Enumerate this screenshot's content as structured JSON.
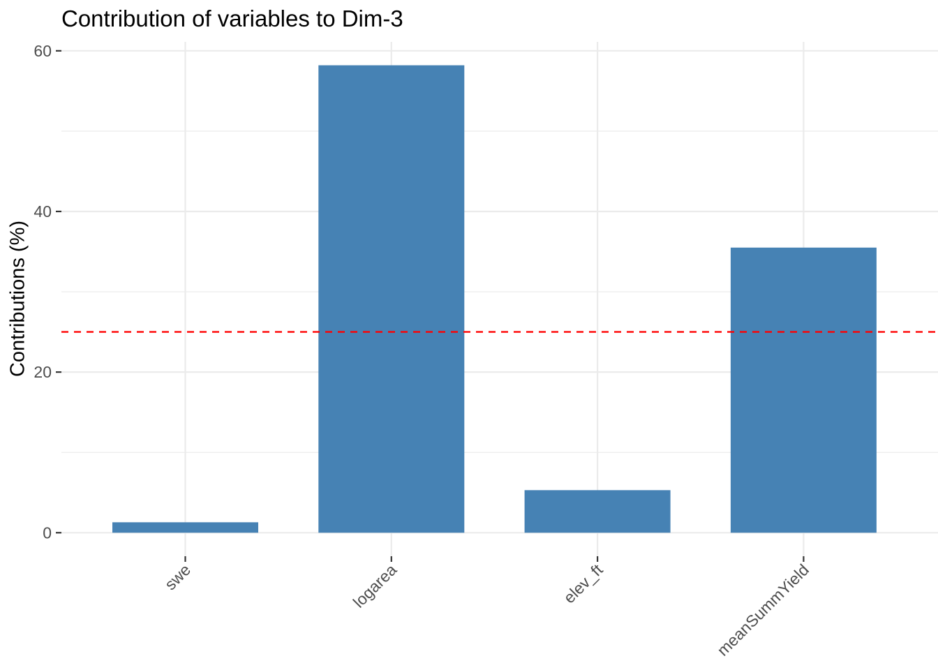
{
  "chart_data": {
    "type": "bar",
    "title": "Contribution of variables to Dim-3",
    "xlabel": "",
    "ylabel": "Contributions (%)",
    "categories": [
      "swe",
      "logarea",
      "elev_ft",
      "meanSummYield"
    ],
    "values": [
      1.3,
      58.2,
      5.3,
      35.5
    ],
    "ylim": [
      0,
      61
    ],
    "y_major_ticks": [
      0,
      20,
      40,
      60
    ],
    "y_minor_ticks": [
      10,
      30,
      50
    ],
    "reference_line": {
      "value": 25,
      "style": "dashed",
      "color": "#FF0000"
    },
    "bar_color": "#4682B4",
    "grid": true,
    "legend_position": "none",
    "x_tick_rotation": 45,
    "theme": {
      "background": "#FFFFFF",
      "gridline_color": "#EBEBEB",
      "tick_mark_color": "#333333",
      "tick_label_color": "#4D4D4D",
      "title_color": "#000000"
    }
  }
}
